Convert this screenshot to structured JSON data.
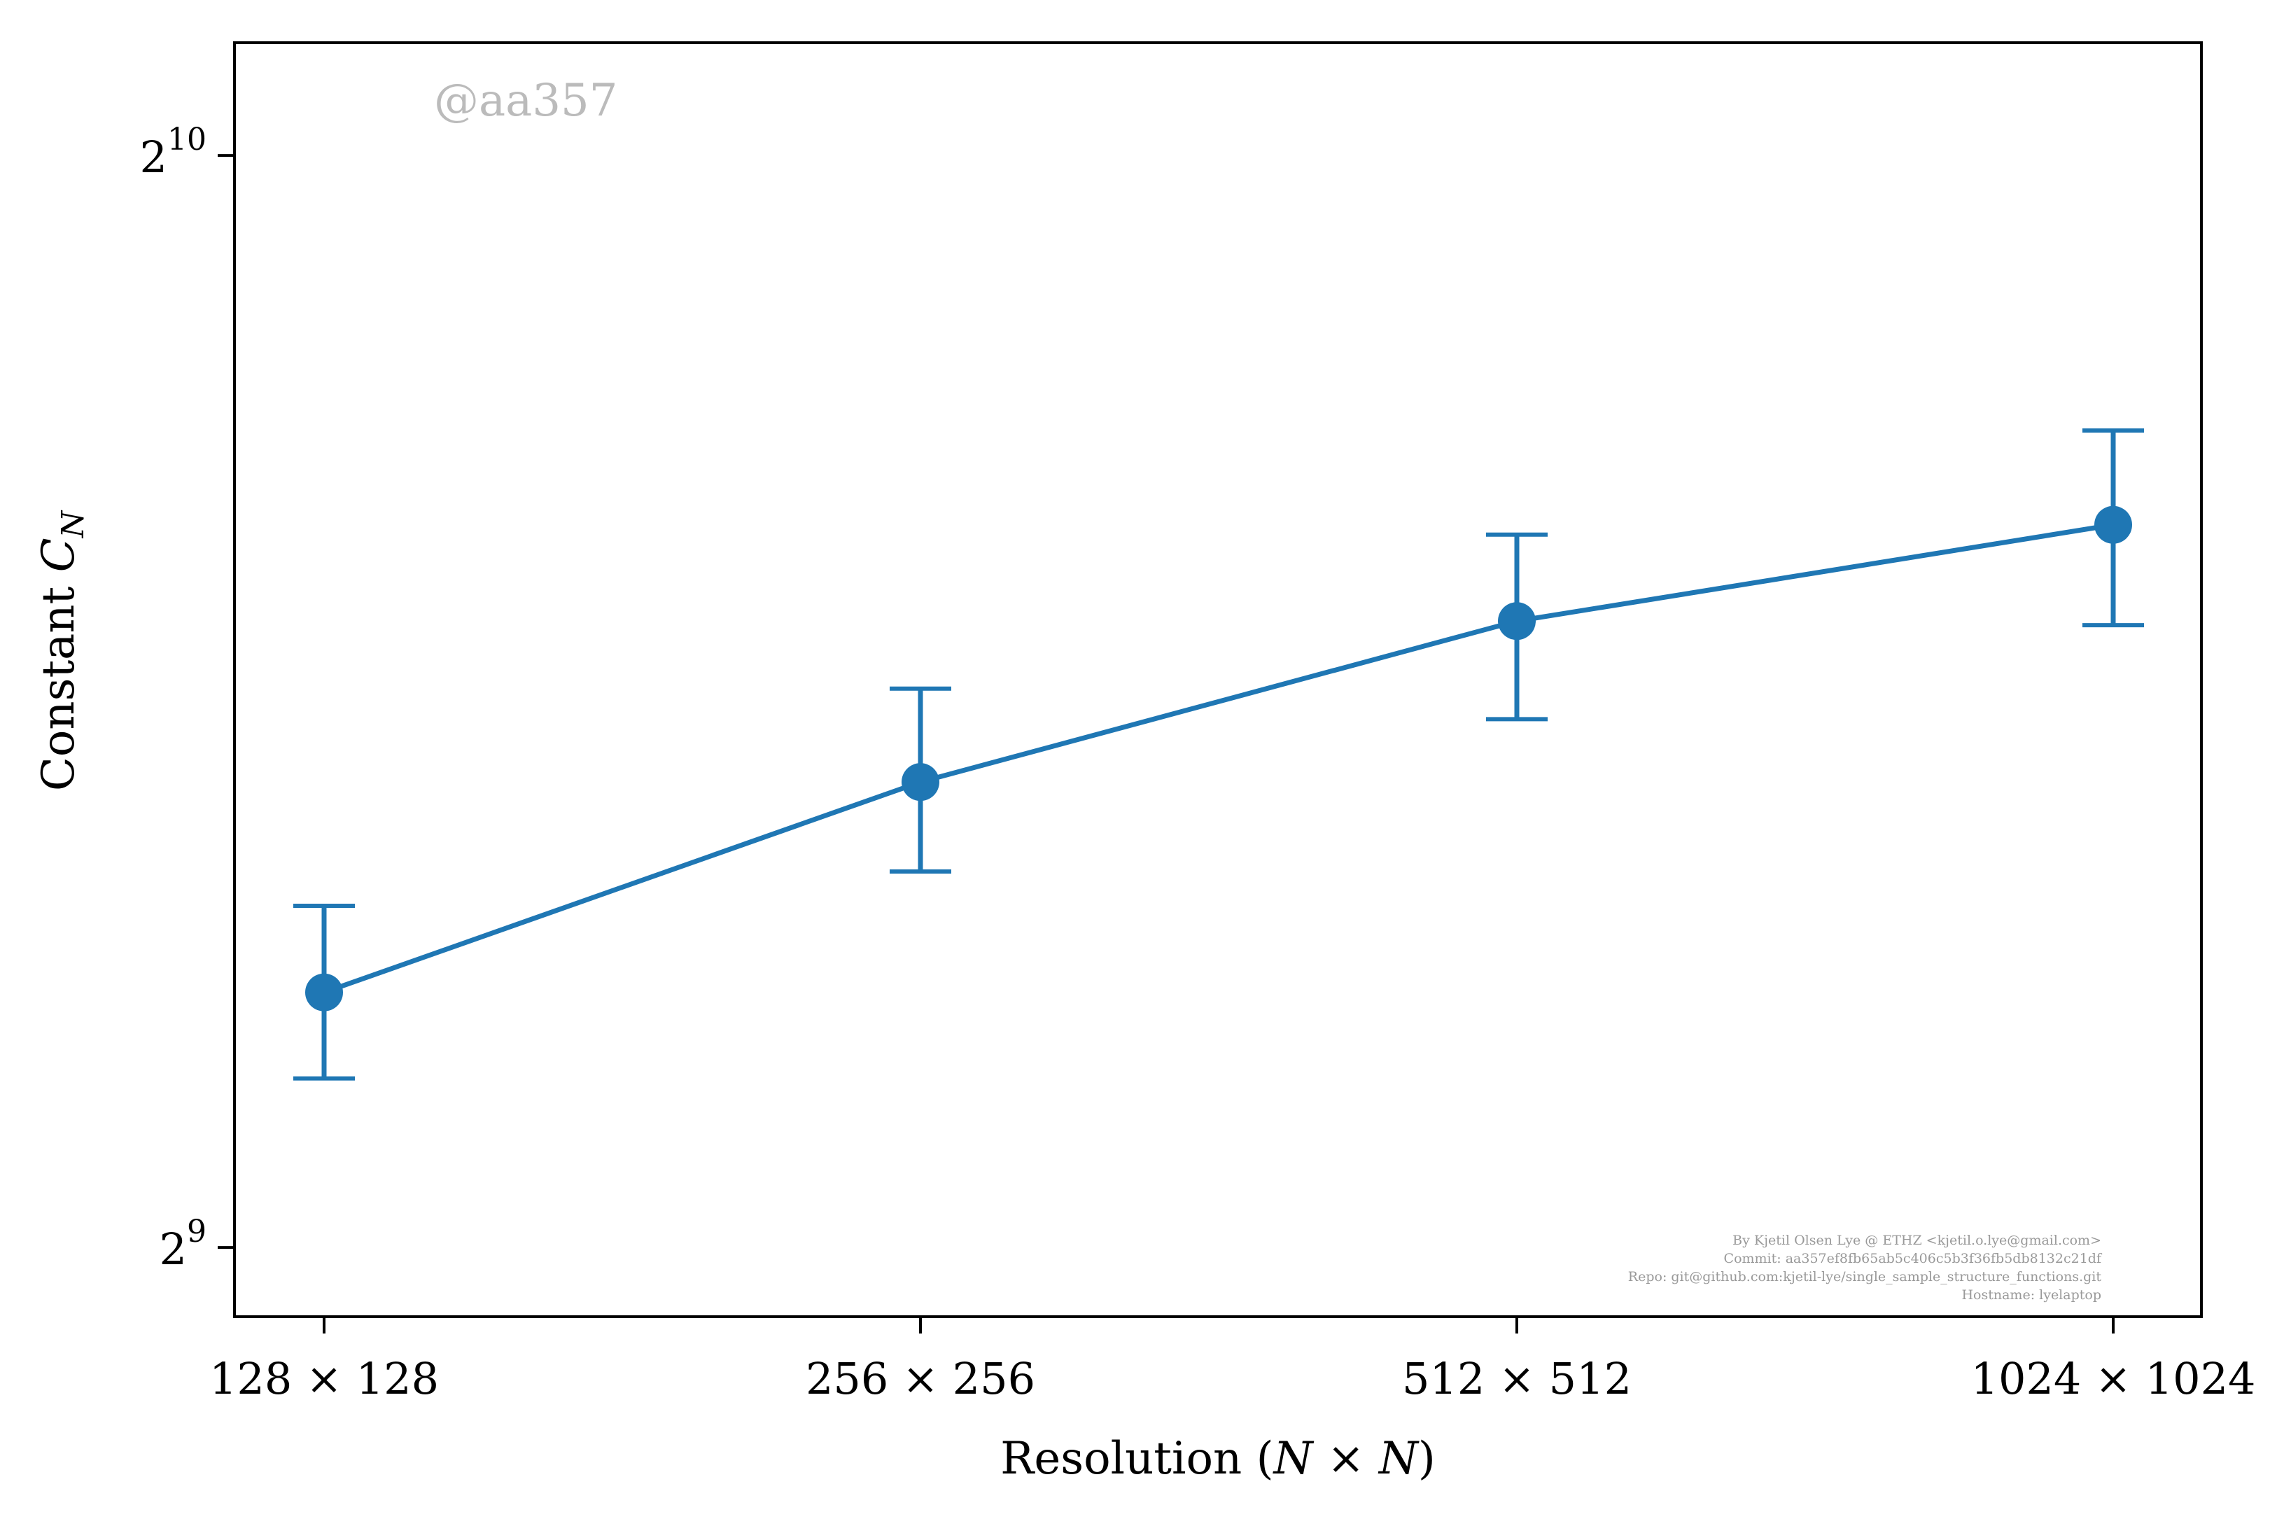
{
  "chart_data": {
    "type": "line",
    "title": "",
    "xlabel": "Resolution (N × N)",
    "ylabel": "Constant C_N",
    "categories": [
      "128 × 128",
      "256 × 256",
      "512 × 512",
      "1024 × 1024"
    ],
    "series": [
      {
        "values": [
          602,
          688,
          762,
          810
        ],
        "error_low": [
          570,
          650,
          716,
          760
        ],
        "error_high": [
          636,
          730,
          805,
          860
        ]
      }
    ],
    "y_scale": "log2",
    "ylim": [
      490,
      1100
    ],
    "yticks": [
      {
        "value": 512,
        "label": "2^9",
        "base": "2",
        "exp": "9"
      },
      {
        "value": 1024,
        "label": "2^10",
        "base": "2",
        "exp": "10"
      }
    ],
    "grid": false,
    "legend": "none",
    "colors": {
      "series": "#1f77b4",
      "axes": "#000000",
      "watermark": "#bbbbbb",
      "credit": "#999999"
    }
  },
  "watermark": "@aa357",
  "credits": [
    "By Kjetil Olsen Lye @ ETHZ <kjetil.o.lye@gmail.com>",
    "Commit: aa357ef8fb65ab5c406c5b3f36fb5db8132c21df",
    "Repo: git@github.com:kjetil-lye/single_sample_structure_functions.git",
    "Hostname: lyelaptop"
  ]
}
